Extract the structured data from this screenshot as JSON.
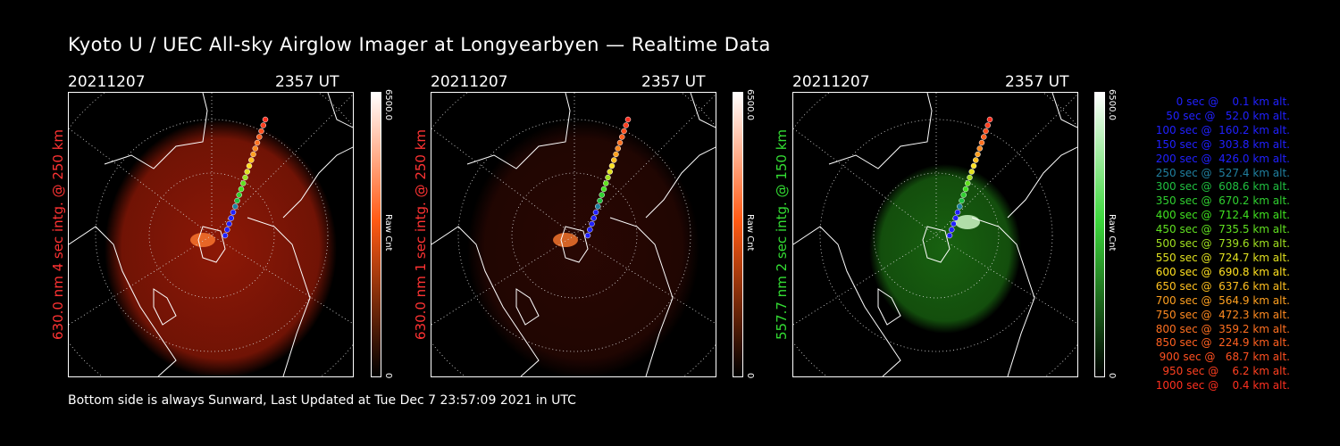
{
  "title": "Kyoto U / UEC All-sky Airglow Imager at Longyearbyen — Realtime Data",
  "footer": "Bottom side is always Sunward, Last Updated at Tue Dec  7 23:57:09 2021 in UTC",
  "panels": [
    {
      "date": "20211207",
      "time": "2357 UT",
      "ylabel": "630.0 nm 4 sec intg. @ 250 km",
      "label_color": "#ff3333",
      "colorbar": {
        "max": "6500.0",
        "min": "0",
        "unit": "Raw Cnt",
        "top_color": "#ffffff",
        "mid_color": "#ff5a14",
        "bottom_color": "#000000"
      },
      "glow_color": "#b01e08",
      "glow_opacity": 0.8
    },
    {
      "date": "20211207",
      "time": "2357 UT",
      "ylabel": "630.0 nm 1 sec intg. @ 250 km",
      "label_color": "#ff3333",
      "colorbar": {
        "max": "6500.0",
        "min": "0",
        "unit": "Raw Cnt",
        "top_color": "#ffffff",
        "mid_color": "#ff5a14",
        "bottom_color": "#000000"
      },
      "glow_color": "#3a0a04",
      "glow_opacity": 0.7
    },
    {
      "date": "20211207",
      "time": "2357 UT",
      "ylabel": "557.7 nm 2 sec intg. @ 150 km",
      "label_color": "#33dd33",
      "colorbar": {
        "max": "6500.0",
        "min": "0",
        "unit": "Raw Cnt",
        "top_color": "#ffffff",
        "mid_color": "#3cd83c",
        "bottom_color": "#000000"
      },
      "glow_color": "#1e7a14",
      "glow_opacity": 0.8
    }
  ],
  "trajectory_legend": [
    {
      "text": "   0 sec @    0.1 km alt.",
      "color": "#2020ff"
    },
    {
      "text": "  50 sec @   52.0 km alt.",
      "color": "#2020ff"
    },
    {
      "text": " 100 sec @  160.2 km alt.",
      "color": "#2020ff"
    },
    {
      "text": " 150 sec @  303.8 km alt.",
      "color": "#2020ff"
    },
    {
      "text": " 200 sec @  426.0 km alt.",
      "color": "#2020ff"
    },
    {
      "text": " 250 sec @  527.4 km alt.",
      "color": "#2080a0"
    },
    {
      "text": " 300 sec @  608.6 km alt.",
      "color": "#20c040"
    },
    {
      "text": " 350 sec @  670.2 km alt.",
      "color": "#30d030"
    },
    {
      "text": " 400 sec @  712.4 km alt.",
      "color": "#40e020"
    },
    {
      "text": " 450 sec @  735.5 km alt.",
      "color": "#60e020"
    },
    {
      "text": " 500 sec @  739.6 km alt.",
      "color": "#a0e020"
    },
    {
      "text": " 550 sec @  724.7 km alt.",
      "color": "#e0e020"
    },
    {
      "text": " 600 sec @  690.8 km alt.",
      "color": "#ffe020"
    },
    {
      "text": " 650 sec @  637.6 km alt.",
      "color": "#ffc020"
    },
    {
      "text": " 700 sec @  564.9 km alt.",
      "color": "#ffa020"
    },
    {
      "text": " 750 sec @  472.3 km alt.",
      "color": "#ff8a20"
    },
    {
      "text": " 800 sec @  359.2 km alt.",
      "color": "#ff7020"
    },
    {
      "text": " 850 sec @  224.9 km alt.",
      "color": "#ff6020"
    },
    {
      "text": " 900 sec @   68.7 km alt.",
      "color": "#ff5020"
    },
    {
      "text": " 950 sec @    6.2 km alt.",
      "color": "#ff4020"
    },
    {
      "text": "1000 sec @    0.4 km alt.",
      "color": "#ff3020"
    }
  ]
}
